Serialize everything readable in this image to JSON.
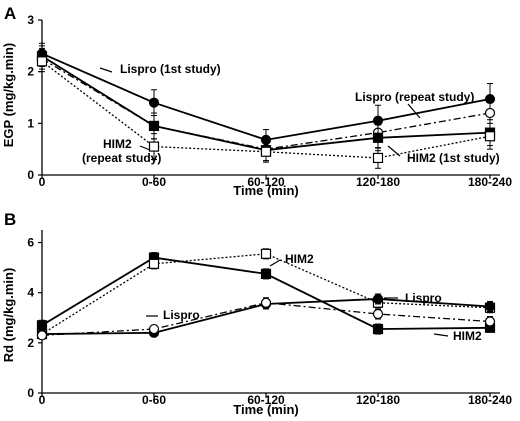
{
  "chart_data": [
    {
      "panel_label": "A",
      "type": "line",
      "categories": [
        "0",
        "0-60",
        "60-120",
        "120-180",
        "180-240"
      ],
      "xlabel": "Time (min)",
      "ylabel": "EGP (mg/kg.min)",
      "ylim": [
        0,
        3
      ],
      "yticks": [
        "0",
        "1",
        "2",
        "3"
      ],
      "grid": false,
      "series": [
        {
          "name": "Lispro (1st study)",
          "marker": "filled-circle",
          "line": "solid",
          "values": [
            2.35,
            1.4,
            0.68,
            1.05,
            1.47
          ],
          "err": [
            0.2,
            0.25,
            0.2,
            0.3,
            0.3
          ]
        },
        {
          "name": "Lispro (repeat study)",
          "marker": "open-circle",
          "line": "dashdot",
          "values": [
            2.25,
            0.95,
            0.5,
            0.82,
            1.2
          ],
          "err": [
            0.2,
            0.25,
            0.25,
            0.3,
            0.3
          ]
        },
        {
          "name": "HIM2 (1st study)",
          "marker": "filled-square",
          "line": "solid",
          "values": [
            2.3,
            0.95,
            0.48,
            0.72,
            0.82
          ],
          "err": [
            0.2,
            0.25,
            0.2,
            0.25,
            0.25
          ]
        },
        {
          "name": "HIM2 (repeat study)",
          "marker": "open-square",
          "line": "dotted",
          "values": [
            2.2,
            0.55,
            0.45,
            0.33,
            0.75
          ],
          "err": [
            0.2,
            0.25,
            0.2,
            0.2,
            0.25
          ]
        }
      ],
      "annotations": [
        "Lispro (1st study)",
        "Lispro (repeat study)",
        "HIM2",
        "(repeat study)",
        "HIM2 (1st study)"
      ]
    },
    {
      "panel_label": "B",
      "type": "line",
      "categories": [
        "0",
        "0-60",
        "60-120",
        "120-180",
        "180-240"
      ],
      "xlabel": "Time (min)",
      "ylabel": "Rd (mg/kg.min)",
      "ylim": [
        0,
        6.5
      ],
      "yticks": [
        "0",
        "2",
        "4",
        "6"
      ],
      "grid": false,
      "series": [
        {
          "name": "HIM2 (1st study)",
          "marker": "filled-square",
          "line": "solid",
          "values": [
            2.7,
            5.4,
            4.75,
            2.55,
            2.6
          ],
          "err": [
            0.2,
            0.2,
            0.2,
            0.2,
            0.15
          ]
        },
        {
          "name": "HIM2 (repeat study)",
          "marker": "open-square",
          "line": "dotted",
          "values": [
            2.35,
            5.15,
            5.55,
            3.6,
            3.4
          ],
          "err": [
            0.2,
            0.2,
            0.2,
            0.2,
            0.2
          ]
        },
        {
          "name": "Lispro (1st study)",
          "marker": "filled-circle",
          "line": "solid",
          "values": [
            2.35,
            2.4,
            3.55,
            3.75,
            3.45
          ],
          "err": [
            0.15,
            0.15,
            0.2,
            0.2,
            0.2
          ]
        },
        {
          "name": "Lispro (repeat study)",
          "marker": "open-circle",
          "line": "dashdot",
          "values": [
            2.3,
            2.55,
            3.6,
            3.15,
            2.85
          ],
          "err": [
            0.15,
            0.15,
            0.2,
            0.2,
            0.2
          ]
        }
      ],
      "annotations": [
        "HIM2",
        "Lispro",
        "Lispro",
        "HIM2"
      ]
    }
  ]
}
